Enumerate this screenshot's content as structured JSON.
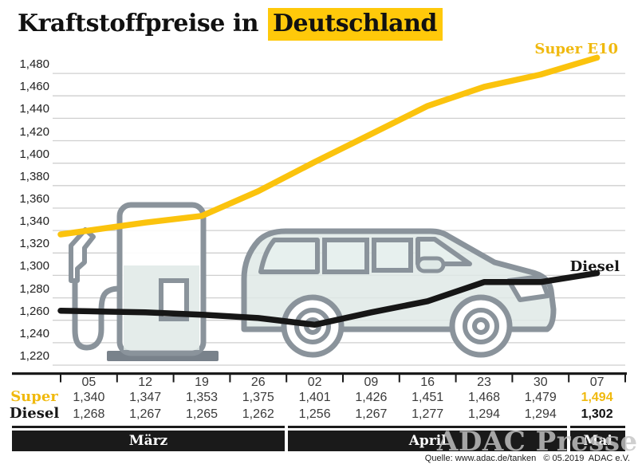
{
  "title": {
    "prefix": "Kraftstoffpreise in ",
    "highlight": "Deutschland"
  },
  "legend": {
    "super": "Super E10",
    "diesel": "Diesel"
  },
  "chart_data": {
    "type": "line",
    "title": "Kraftstoffpreise in Deutschland",
    "x_tick_labels": [
      "05",
      "12",
      "19",
      "26",
      "02",
      "09",
      "16",
      "23",
      "30",
      "07"
    ],
    "month_groups": [
      {
        "label": "März",
        "columns": 4
      },
      {
        "label": "April",
        "columns": 5
      },
      {
        "label": "Mai",
        "columns": 1
      }
    ],
    "y_min": 1220,
    "y_max": 1480,
    "y_step": 20,
    "y_tick_labels": [
      "1,220",
      "1,240",
      "1,260",
      "1,280",
      "1,300",
      "1,320",
      "1,340",
      "1,360",
      "1,380",
      "1,400",
      "1,420",
      "1,440",
      "1,460",
      "1,480"
    ],
    "grid": true,
    "legend_position": "end-of-line labels",
    "series": [
      {
        "name": "Super E10",
        "row_label": "Super",
        "color": "#FBC30D",
        "values": [
          1340,
          1347,
          1353,
          1375,
          1401,
          1426,
          1451,
          1468,
          1479,
          1494
        ]
      },
      {
        "name": "Diesel",
        "row_label": "Diesel",
        "color": "#161616",
        "values": [
          1268,
          1267,
          1265,
          1262,
          1256,
          1267,
          1277,
          1294,
          1294,
          1302
        ]
      }
    ]
  },
  "table": {
    "dates": [
      "05",
      "12",
      "19",
      "26",
      "02",
      "09",
      "16",
      "23",
      "30",
      "07"
    ],
    "rows": [
      {
        "label": "Super",
        "values": [
          "1,340",
          "1,347",
          "1,353",
          "1,375",
          "1,401",
          "1,426",
          "1,451",
          "1,468",
          "1,479",
          "1,494"
        ]
      },
      {
        "label": "Diesel",
        "values": [
          "1,268",
          "1,267",
          "1,265",
          "1,262",
          "1,256",
          "1,267",
          "1,277",
          "1,294",
          "1,294",
          "1,302"
        ]
      }
    ]
  },
  "footer": {
    "watermark": "ADAC Presse",
    "source": "Quelle: www.adac.de/tanken   © 05.2019  ADAC e.V."
  },
  "colors": {
    "accent_text": "#F0B90E",
    "highlight_bg": "#FFC90A",
    "line_yellow": "#FBC30D",
    "line_black": "#161616",
    "grid": "#CFCFCF",
    "axis": "#1A1A1A",
    "illustration_stroke": "#8A939B",
    "illustration_fill": "#DFE9E6"
  }
}
